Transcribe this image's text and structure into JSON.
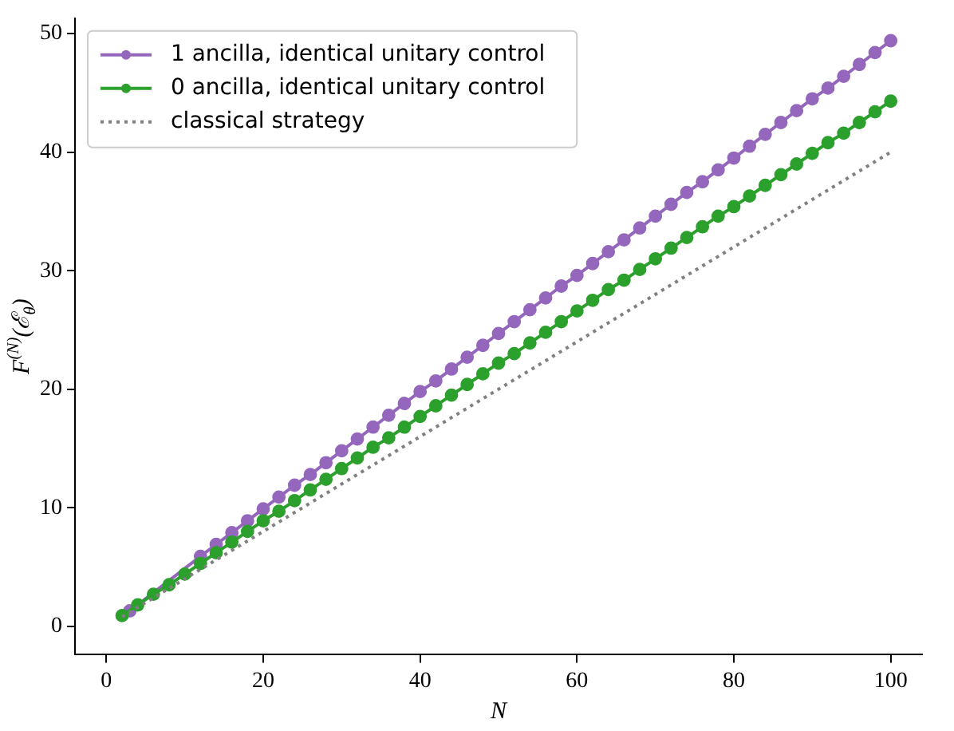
{
  "chart_data": {
    "type": "line",
    "xlabel": "N",
    "ylabel": "F$^{(N)}$(ℰ$_{θ}$)",
    "xlim": [
      -4,
      104
    ],
    "ylim": [
      -2.4,
      51.3
    ],
    "xticks": [
      0,
      20,
      40,
      60,
      80,
      100
    ],
    "yticks": [
      0,
      10,
      20,
      30,
      40,
      50
    ],
    "grid": false,
    "legend": "top left",
    "series": [
      {
        "name": "1 ancilla, identical unitary control",
        "color": "#9467bd",
        "marker": "circle",
        "line_style": "solid",
        "x": [
          3,
          12,
          14,
          16,
          18,
          20,
          22,
          24,
          26,
          28,
          30,
          32,
          34,
          36,
          38,
          40,
          42,
          44,
          46,
          48,
          50,
          52,
          54,
          56,
          58,
          60,
          62,
          64,
          66,
          68,
          70,
          72,
          74,
          76,
          78,
          80,
          82,
          84,
          86,
          88,
          90,
          92,
          94,
          96,
          98,
          100
        ],
        "values": [
          1.3,
          5.9,
          6.9,
          7.9,
          8.9,
          9.9,
          10.9,
          11.9,
          12.8,
          13.8,
          14.8,
          15.8,
          16.8,
          17.8,
          18.8,
          19.8,
          20.7,
          21.7,
          22.7,
          23.7,
          24.7,
          25.7,
          26.7,
          27.7,
          28.7,
          29.6,
          30.6,
          31.6,
          32.6,
          33.6,
          34.6,
          35.6,
          36.6,
          37.5,
          38.5,
          39.5,
          40.5,
          41.5,
          42.5,
          43.5,
          44.5,
          45.4,
          46.4,
          47.4,
          48.4,
          49.4
        ]
      },
      {
        "name": "0 ancilla, identical unitary control",
        "color": "#2ca02c",
        "marker": "circle",
        "line_style": "solid",
        "x": [
          2,
          4,
          6,
          8,
          10,
          12,
          14,
          16,
          18,
          20,
          22,
          24,
          26,
          28,
          30,
          32,
          34,
          36,
          38,
          40,
          42,
          44,
          46,
          48,
          50,
          52,
          54,
          56,
          58,
          60,
          62,
          64,
          66,
          68,
          70,
          72,
          74,
          76,
          78,
          80,
          82,
          84,
          86,
          88,
          90,
          92,
          94,
          96,
          98,
          100
        ],
        "values": [
          0.9,
          1.8,
          2.7,
          3.5,
          4.4,
          5.3,
          6.2,
          7.1,
          8.0,
          8.9,
          9.7,
          10.6,
          11.5,
          12.4,
          13.3,
          14.2,
          15.1,
          15.9,
          16.8,
          17.7,
          18.6,
          19.5,
          20.4,
          21.3,
          22.2,
          23.0,
          23.9,
          24.8,
          25.7,
          26.6,
          27.5,
          28.4,
          29.2,
          30.1,
          31.0,
          31.9,
          32.8,
          33.7,
          34.6,
          35.4,
          36.3,
          37.2,
          38.1,
          39.0,
          39.9,
          40.8,
          41.6,
          42.5,
          43.4,
          44.3
        ]
      },
      {
        "name": "classical strategy",
        "color": "#808080",
        "marker": "none",
        "line_style": "dotted",
        "x": [
          2,
          100
        ],
        "values": [
          0.8,
          40
        ]
      }
    ]
  }
}
